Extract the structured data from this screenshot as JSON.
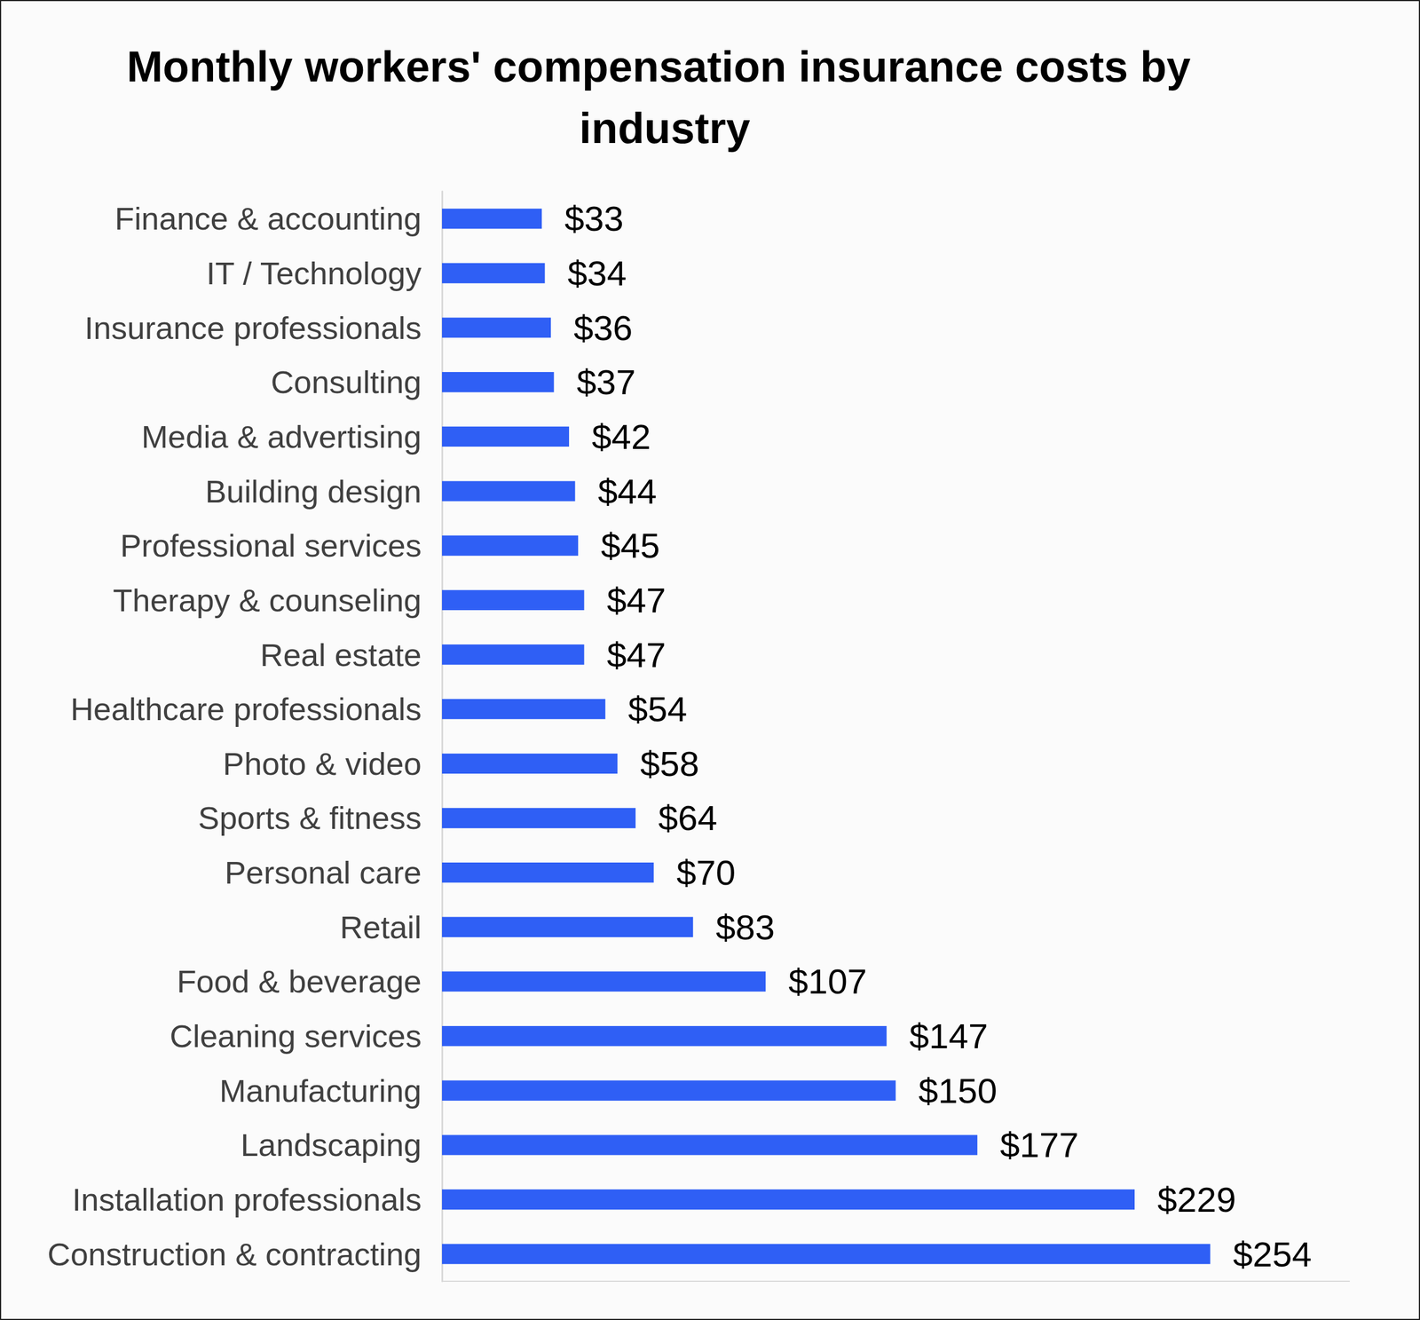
{
  "chart_data": {
    "type": "bar",
    "orientation": "horizontal",
    "title": "Monthly workers' compensation insurance costs by industry",
    "categories": [
      "Finance & accounting",
      "IT / Technology",
      "Insurance professionals",
      "Consulting",
      "Media & advertising",
      "Building design",
      "Professional services",
      "Therapy & counseling",
      "Real estate",
      "Healthcare professionals",
      "Photo & video",
      "Sports & fitness",
      "Personal care",
      "Retail",
      "Food & beverage",
      "Cleaning services",
      "Manufacturing",
      "Landscaping",
      "Installation professionals",
      "Construction & contracting"
    ],
    "values": [
      33,
      34,
      36,
      37,
      42,
      44,
      45,
      47,
      47,
      54,
      58,
      64,
      70,
      83,
      107,
      147,
      150,
      177,
      229,
      254
    ],
    "value_labels": [
      "$33",
      "$34",
      "$36",
      "$37",
      "$42",
      "$44",
      "$45",
      "$47",
      "$47",
      "$54",
      "$58",
      "$64",
      "$70",
      "$83",
      "$107",
      "$147",
      "$150",
      "$177",
      "$229",
      "$254"
    ],
    "color": "#2f5ff5",
    "xlim": [
      0,
      300
    ],
    "grid": false,
    "data_labels": true,
    "tick_labels": "y"
  }
}
